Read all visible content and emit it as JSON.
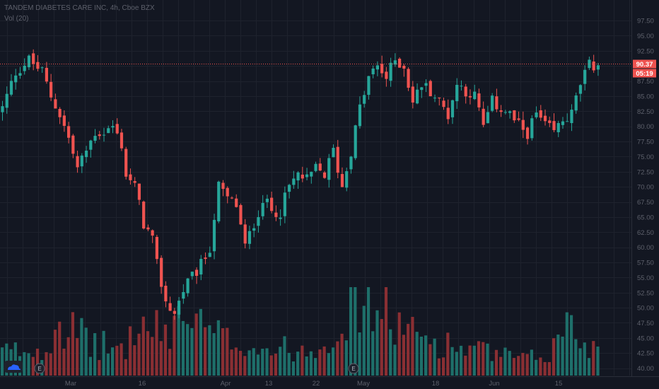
{
  "legend": {
    "title": "TANDEM DIABETES CARE INC, 4h, Cboe BZX",
    "volume": "Vol (20)"
  },
  "price_label": "90.37",
  "countdown_label": "05:19",
  "earnings_marker": "E",
  "colors": {
    "background": "#131722",
    "grid": "#1e222d",
    "axis_text": "#5d606b",
    "up": "#26a69a",
    "down": "#ef5350",
    "up_volume": "#1e6f6a",
    "down_volume": "#8a2f33",
    "price_line": "#ef5350"
  },
  "chart_data": {
    "type": "candlestick",
    "title": "TANDEM DIABETES CARE INC, 4h, Cboe BZX",
    "x_tick_labels": [
      "Mar",
      "16",
      "Apr",
      "13",
      "22",
      "May",
      "18",
      "Jun",
      "15"
    ],
    "y_ticks": [
      40,
      42.5,
      45,
      47.5,
      50,
      52.5,
      55,
      57.5,
      60,
      62.5,
      65,
      67.5,
      70,
      72.5,
      75,
      77.5,
      80,
      82.5,
      85,
      87.5,
      90,
      92.5,
      95,
      97.5
    ],
    "y_tick_labels": [
      "40.00",
      "42.50",
      "45.00",
      "47.50",
      "50.00",
      "52.50",
      "55.00",
      "57.50",
      "60.00",
      "62.50",
      "65.00",
      "67.50",
      "70.00",
      "72.50",
      "75.00",
      "77.50",
      "80.00",
      "82.50",
      "85.00",
      "87.50",
      "90.00",
      "92.50",
      "95.00",
      "97.50"
    ],
    "ylim": [
      38.9,
      98.8
    ],
    "last_price": 90.37,
    "close_path": [
      [
        0,
        83
      ],
      [
        3,
        89
      ],
      [
        6,
        91
      ],
      [
        9,
        89
      ],
      [
        11,
        85
      ],
      [
        13,
        82
      ],
      [
        15,
        78
      ],
      [
        17,
        73
      ],
      [
        19,
        76
      ],
      [
        21,
        79
      ],
      [
        23,
        79
      ],
      [
        25,
        80
      ],
      [
        27,
        77
      ],
      [
        28,
        72
      ],
      [
        30,
        70
      ],
      [
        32,
        64
      ],
      [
        34,
        61
      ],
      [
        35,
        57
      ],
      [
        37,
        51
      ],
      [
        39,
        49
      ],
      [
        41,
        53
      ],
      [
        43,
        55
      ],
      [
        45,
        57
      ],
      [
        47,
        60
      ],
      [
        49,
        70
      ],
      [
        51,
        68
      ],
      [
        53,
        67
      ],
      [
        55,
        60
      ],
      [
        57,
        64
      ],
      [
        59,
        68
      ],
      [
        61,
        66
      ],
      [
        63,
        66
      ],
      [
        65,
        70
      ],
      [
        67,
        72
      ],
      [
        69,
        71
      ],
      [
        71,
        73
      ],
      [
        73,
        72
      ],
      [
        75,
        76
      ],
      [
        77,
        70
      ],
      [
        79,
        76
      ],
      [
        81,
        83
      ],
      [
        83,
        88
      ],
      [
        85,
        90
      ],
      [
        87,
        88
      ],
      [
        89,
        91
      ],
      [
        91,
        90
      ],
      [
        93,
        84
      ],
      [
        95,
        87
      ],
      [
        97,
        86
      ],
      [
        99,
        84
      ],
      [
        101,
        82
      ],
      [
        103,
        87
      ],
      [
        105,
        86
      ],
      [
        107,
        85
      ],
      [
        109,
        80
      ],
      [
        111,
        84
      ],
      [
        113,
        83
      ],
      [
        115,
        82
      ],
      [
        117,
        80
      ],
      [
        119,
        79
      ],
      [
        121,
        82
      ],
      [
        123,
        80
      ],
      [
        125,
        79
      ],
      [
        127,
        81
      ],
      [
        129,
        82
      ],
      [
        131,
        87
      ],
      [
        133,
        90
      ],
      [
        135,
        90.4
      ]
    ],
    "volume_profile": [
      [
        0,
        4.5
      ],
      [
        10,
        5
      ],
      [
        12,
        11
      ],
      [
        20,
        6
      ],
      [
        28,
        5
      ],
      [
        30,
        9
      ],
      [
        38,
        8
      ],
      [
        40,
        12
      ],
      [
        45,
        9
      ],
      [
        50,
        7
      ],
      [
        55,
        6
      ],
      [
        60,
        5
      ],
      [
        70,
        5
      ],
      [
        76,
        9
      ],
      [
        80,
        14
      ],
      [
        84,
        13
      ],
      [
        88,
        11
      ],
      [
        92,
        8
      ],
      [
        96,
        7
      ],
      [
        100,
        6
      ],
      [
        106,
        5
      ],
      [
        112,
        4
      ],
      [
        118,
        3
      ],
      [
        124,
        4
      ],
      [
        128,
        10
      ],
      [
        132,
        6
      ],
      [
        135,
        5
      ]
    ],
    "volume_max": 15
  }
}
